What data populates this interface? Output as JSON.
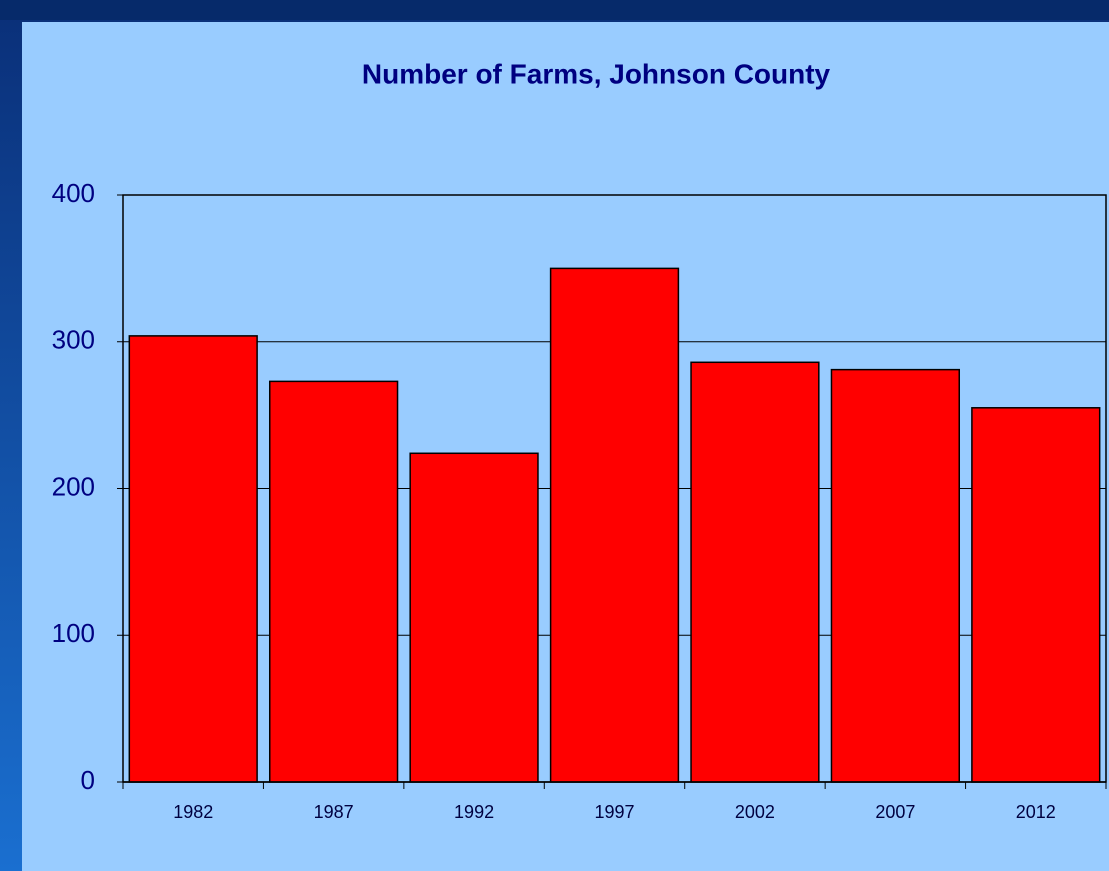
{
  "chart_data": {
    "type": "bar",
    "title": "Number of Farms, Johnson County",
    "categories": [
      "1982",
      "1987",
      "1992",
      "1997",
      "2002",
      "2007",
      "2012"
    ],
    "values": [
      304,
      273,
      224,
      350,
      286,
      281,
      255
    ],
    "color": "#ff0000",
    "ylim": [
      0,
      400
    ],
    "yticks": [
      0,
      100,
      200,
      300,
      400
    ],
    "grid": true
  }
}
